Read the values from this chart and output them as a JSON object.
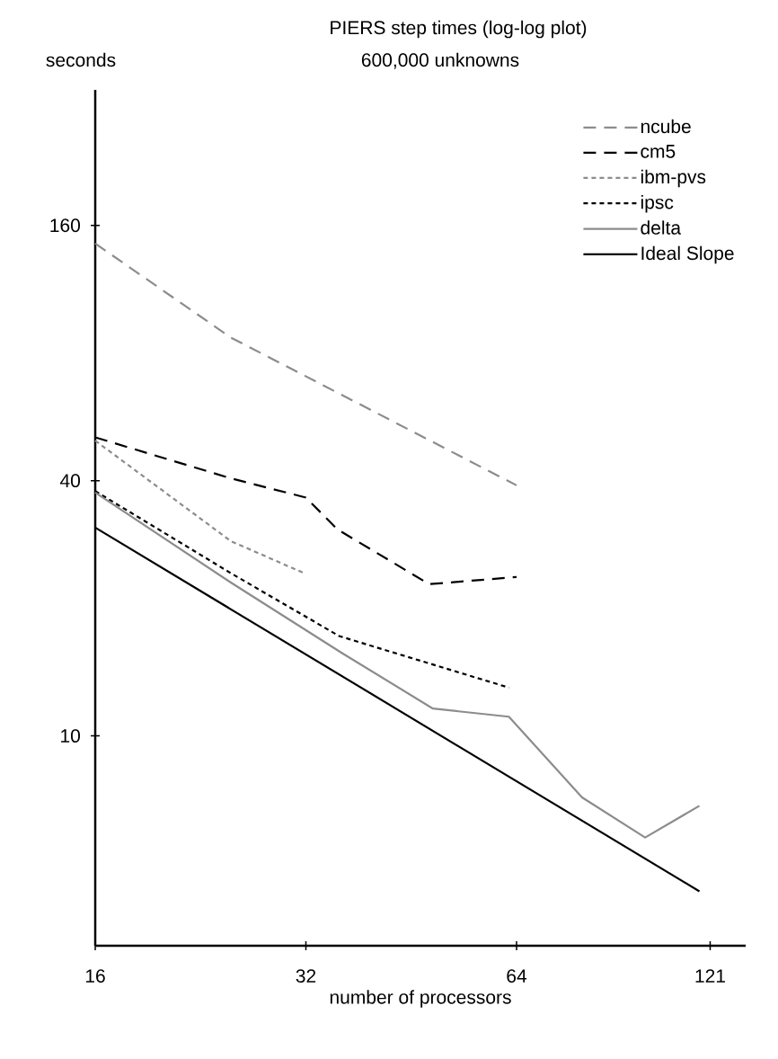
{
  "chart_data": {
    "type": "line",
    "title": "PIERS step times (log-log plot)",
    "subtitle": "600,000 unknowns",
    "ylabel": "seconds",
    "xlabel": "number of processors",
    "log": "xy",
    "xlim": [
      16,
      136
    ],
    "ylim": [
      3.2,
      334
    ],
    "xticks": [
      16,
      32,
      64,
      121
    ],
    "yticks": [
      10,
      40,
      160
    ],
    "legend": "top right",
    "grid": false,
    "series": [
      {
        "name": "ncube",
        "color": "#8c8c8c",
        "line_style": "dashed",
        "x": [
          16,
          25,
          64
        ],
        "values": [
          145,
          87,
          39
        ]
      },
      {
        "name": "cm5",
        "color": "#000000",
        "line_style": "dashed",
        "x": [
          16,
          25,
          32,
          35.5,
          48,
          64
        ],
        "values": [
          50.6,
          40.5,
          36.5,
          30.7,
          22.8,
          23.7
        ]
      },
      {
        "name": "ibm-pvs",
        "color": "#8c8c8c",
        "line_style": "dotted",
        "x": [
          16,
          25,
          32
        ],
        "values": [
          49.7,
          28.8,
          24.1
        ]
      },
      {
        "name": "ipsc",
        "color": "#000000",
        "line_style": "dotted",
        "x": [
          16,
          25,
          35.7,
          62.4
        ],
        "values": [
          37.8,
          24.2,
          17.2,
          13.0
        ]
      },
      {
        "name": "delta",
        "color": "#8c8c8c",
        "line_style": "solid",
        "x": [
          16,
          25,
          36,
          48.6,
          62.4,
          79.4,
          97.7,
          116.8
        ],
        "values": [
          37.5,
          23.0,
          15.7,
          11.6,
          11.1,
          7.16,
          5.76,
          6.84
        ]
      },
      {
        "name": "Ideal Slope",
        "color": "#000000",
        "line_style": "solid",
        "x": [
          16,
          116.8
        ],
        "values": [
          31.0,
          4.3
        ]
      }
    ]
  }
}
